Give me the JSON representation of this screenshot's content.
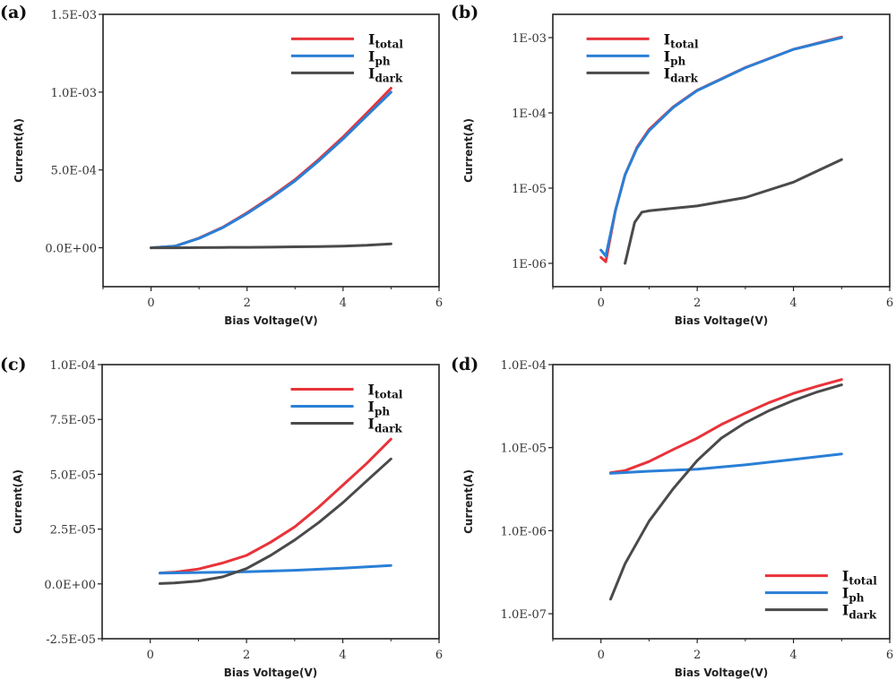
{
  "colors": {
    "total": "#e8333a",
    "ph": "#2a7fd6",
    "dark": "#4a4a4a"
  },
  "chart_data": [
    {
      "panel": "(a)",
      "type": "line",
      "xlabel": "Bias Voltage(V)",
      "ylabel": "Current(A)",
      "yscale": "linear",
      "xlim": [
        -1,
        6
      ],
      "ylim": [
        -0.00025,
        0.0015
      ],
      "xticks": [
        0,
        2,
        4,
        6
      ],
      "xtick_labels": [
        "0",
        "2",
        "4",
        "6"
      ],
      "yticks": [
        0.0015,
        0.001,
        0.0005,
        0
      ],
      "ytick_labels": [
        "1.5E-03",
        "1.0E-03",
        "5.0E-04",
        "0.0E+00"
      ],
      "legend": "top-right",
      "grid": false,
      "series": [
        {
          "name": "Itotal",
          "color": "total",
          "x": [
            0,
            0.5,
            1,
            1.5,
            2,
            2.5,
            3,
            3.5,
            4,
            4.5,
            5
          ],
          "y": [
            0,
            1e-05,
            6.2e-05,
            0.000133,
            0.000225,
            0.000326,
            0.000438,
            0.00057,
            0.000712,
            0.000867,
            0.001025
          ]
        },
        {
          "name": "Iph",
          "color": "ph",
          "x": [
            0,
            0.5,
            1,
            1.5,
            2,
            2.5,
            3,
            3.5,
            4,
            4.5,
            5
          ],
          "y": [
            0,
            1e-05,
            6e-05,
            0.00013,
            0.00022,
            0.00032,
            0.00043,
            0.00056,
            0.0007,
            0.00085,
            0.001
          ]
        },
        {
          "name": "Idark",
          "color": "dark",
          "x": [
            0,
            0.5,
            1,
            1.5,
            2,
            2.5,
            3,
            3.5,
            4,
            4.5,
            5
          ],
          "y": [
            0,
            0,
            1e-06,
            2e-06,
            3e-06,
            4e-06,
            6e-06,
            8e-06,
            1.1e-05,
            1.6e-05,
            2.5e-05
          ]
        }
      ]
    },
    {
      "panel": "(b)",
      "type": "line",
      "xlabel": "Bias Voltage(V)",
      "ylabel": "Current(A)",
      "yscale": "log",
      "xlim": [
        -1,
        6
      ],
      "ylim": [
        4.9e-07,
        0.00204
      ],
      "xticks": [
        0,
        2,
        4,
        6
      ],
      "xtick_labels": [
        "0",
        "2",
        "4",
        "6"
      ],
      "yticks": [
        0.001,
        0.0001,
        1e-05,
        1e-06
      ],
      "ytick_labels": [
        "1E-03",
        "1E-04",
        "1E-05",
        "1E-06"
      ],
      "legend": "top-left",
      "grid": false,
      "series": [
        {
          "name": "Itotal",
          "color": "total",
          "x": [
            0,
            0.1,
            0.3,
            0.5,
            0.75,
            1,
            1.5,
            2,
            3,
            4,
            5
          ],
          "y": [
            1.2e-06,
            1.05e-06,
            5e-06,
            1.5e-05,
            3.5e-05,
            6e-05,
            0.00012,
            0.0002,
            0.0004,
            0.0007,
            0.00102
          ]
        },
        {
          "name": "Iph",
          "color": "ph",
          "x": [
            0,
            0.1,
            0.3,
            0.5,
            0.75,
            1,
            1.5,
            2,
            3,
            4,
            5
          ],
          "y": [
            1.5e-06,
            1.25e-06,
            5e-06,
            1.5e-05,
            3.4e-05,
            5.8e-05,
            0.000118,
            0.000198,
            0.000398,
            0.000698,
            0.001
          ]
        },
        {
          "name": "Idark",
          "color": "dark",
          "x": [
            0.5,
            0.7,
            0.85,
            1,
            2,
            3,
            4,
            5
          ],
          "y": [
            1e-06,
            3.5e-06,
            4.8e-06,
            5e-06,
            5.8e-06,
            7.5e-06,
            1.2e-05,
            2.4e-05
          ]
        }
      ]
    },
    {
      "panel": "(c)",
      "type": "line",
      "xlabel": "Bias Voltage(V)",
      "ylabel": "Current(A)",
      "yscale": "linear",
      "xlim": [
        -1,
        6
      ],
      "ylim": [
        -2.5e-05,
        0.0001
      ],
      "xticks": [
        0,
        2,
        4,
        6
      ],
      "xtick_labels": [
        "0",
        "2",
        "4",
        "6"
      ],
      "yticks": [
        0.0001,
        7.5e-05,
        5e-05,
        2.5e-05,
        0,
        -2.5e-05
      ],
      "ytick_labels": [
        "1.0E-04",
        "7.5E-05",
        "5.0E-05",
        "2.5E-05",
        "0.0E+00",
        "-2.5E-05"
      ],
      "legend": "top-right",
      "grid": false,
      "series": [
        {
          "name": "Itotal",
          "color": "total",
          "x": [
            0.2,
            0.5,
            1,
            1.5,
            2,
            2.5,
            3,
            3.5,
            4,
            4.5,
            5
          ],
          "y": [
            5e-06,
            5.3e-06,
            6.8e-06,
            9.5e-06,
            1.3e-05,
            1.9e-05,
            2.6e-05,
            3.5e-05,
            4.5e-05,
            5.5e-05,
            6.6e-05
          ]
        },
        {
          "name": "Iph",
          "color": "ph",
          "x": [
            0.2,
            1,
            2,
            3,
            4,
            5
          ],
          "y": [
            4.9e-06,
            5.2e-06,
            5.5e-06,
            6.2e-06,
            7.2e-06,
            8.4e-06
          ]
        },
        {
          "name": "Idark",
          "color": "dark",
          "x": [
            0.2,
            0.5,
            1,
            1.5,
            2,
            2.5,
            3,
            3.5,
            4,
            4.5,
            5
          ],
          "y": [
            1.5e-07,
            4e-07,
            1.3e-06,
            3.2e-06,
            7e-06,
            1.3e-05,
            2e-05,
            2.8e-05,
            3.7e-05,
            4.7e-05,
            5.7e-05
          ]
        }
      ]
    },
    {
      "panel": "(d)",
      "type": "line",
      "xlabel": "Bias Voltage(V)",
      "ylabel": "Current(A)",
      "yscale": "log",
      "xlim": [
        -1,
        6
      ],
      "ylim": [
        5e-08,
        0.0001
      ],
      "xticks": [
        0,
        2,
        4,
        6
      ],
      "xtick_labels": [
        "0",
        "2",
        "4",
        "6"
      ],
      "yticks": [
        0.0001,
        1e-05,
        1e-06,
        1e-07
      ],
      "ytick_labels": [
        "1.0E-04",
        "1.0E-05",
        "1.0E-06",
        "1.0E-07"
      ],
      "legend": "bottom-right",
      "grid": false,
      "series": [
        {
          "name": "Itotal",
          "color": "total",
          "x": [
            0.2,
            0.5,
            1,
            1.5,
            2,
            2.5,
            3,
            3.5,
            4,
            4.5,
            5
          ],
          "y": [
            5e-06,
            5.3e-06,
            6.8e-06,
            9.5e-06,
            1.3e-05,
            1.9e-05,
            2.6e-05,
            3.5e-05,
            4.5e-05,
            5.5e-05,
            6.6e-05
          ]
        },
        {
          "name": "Iph",
          "color": "ph",
          "x": [
            0.2,
            1,
            2,
            3,
            4,
            5
          ],
          "y": [
            4.9e-06,
            5.2e-06,
            5.5e-06,
            6.2e-06,
            7.2e-06,
            8.4e-06
          ]
        },
        {
          "name": "Idark",
          "color": "dark",
          "x": [
            0.2,
            0.5,
            1,
            1.5,
            2,
            2.5,
            3,
            3.5,
            4,
            4.5,
            5
          ],
          "y": [
            1.5e-07,
            4e-07,
            1.3e-06,
            3.2e-06,
            7e-06,
            1.3e-05,
            2e-05,
            2.8e-05,
            3.7e-05,
            4.7e-05,
            5.7e-05
          ]
        }
      ]
    }
  ]
}
